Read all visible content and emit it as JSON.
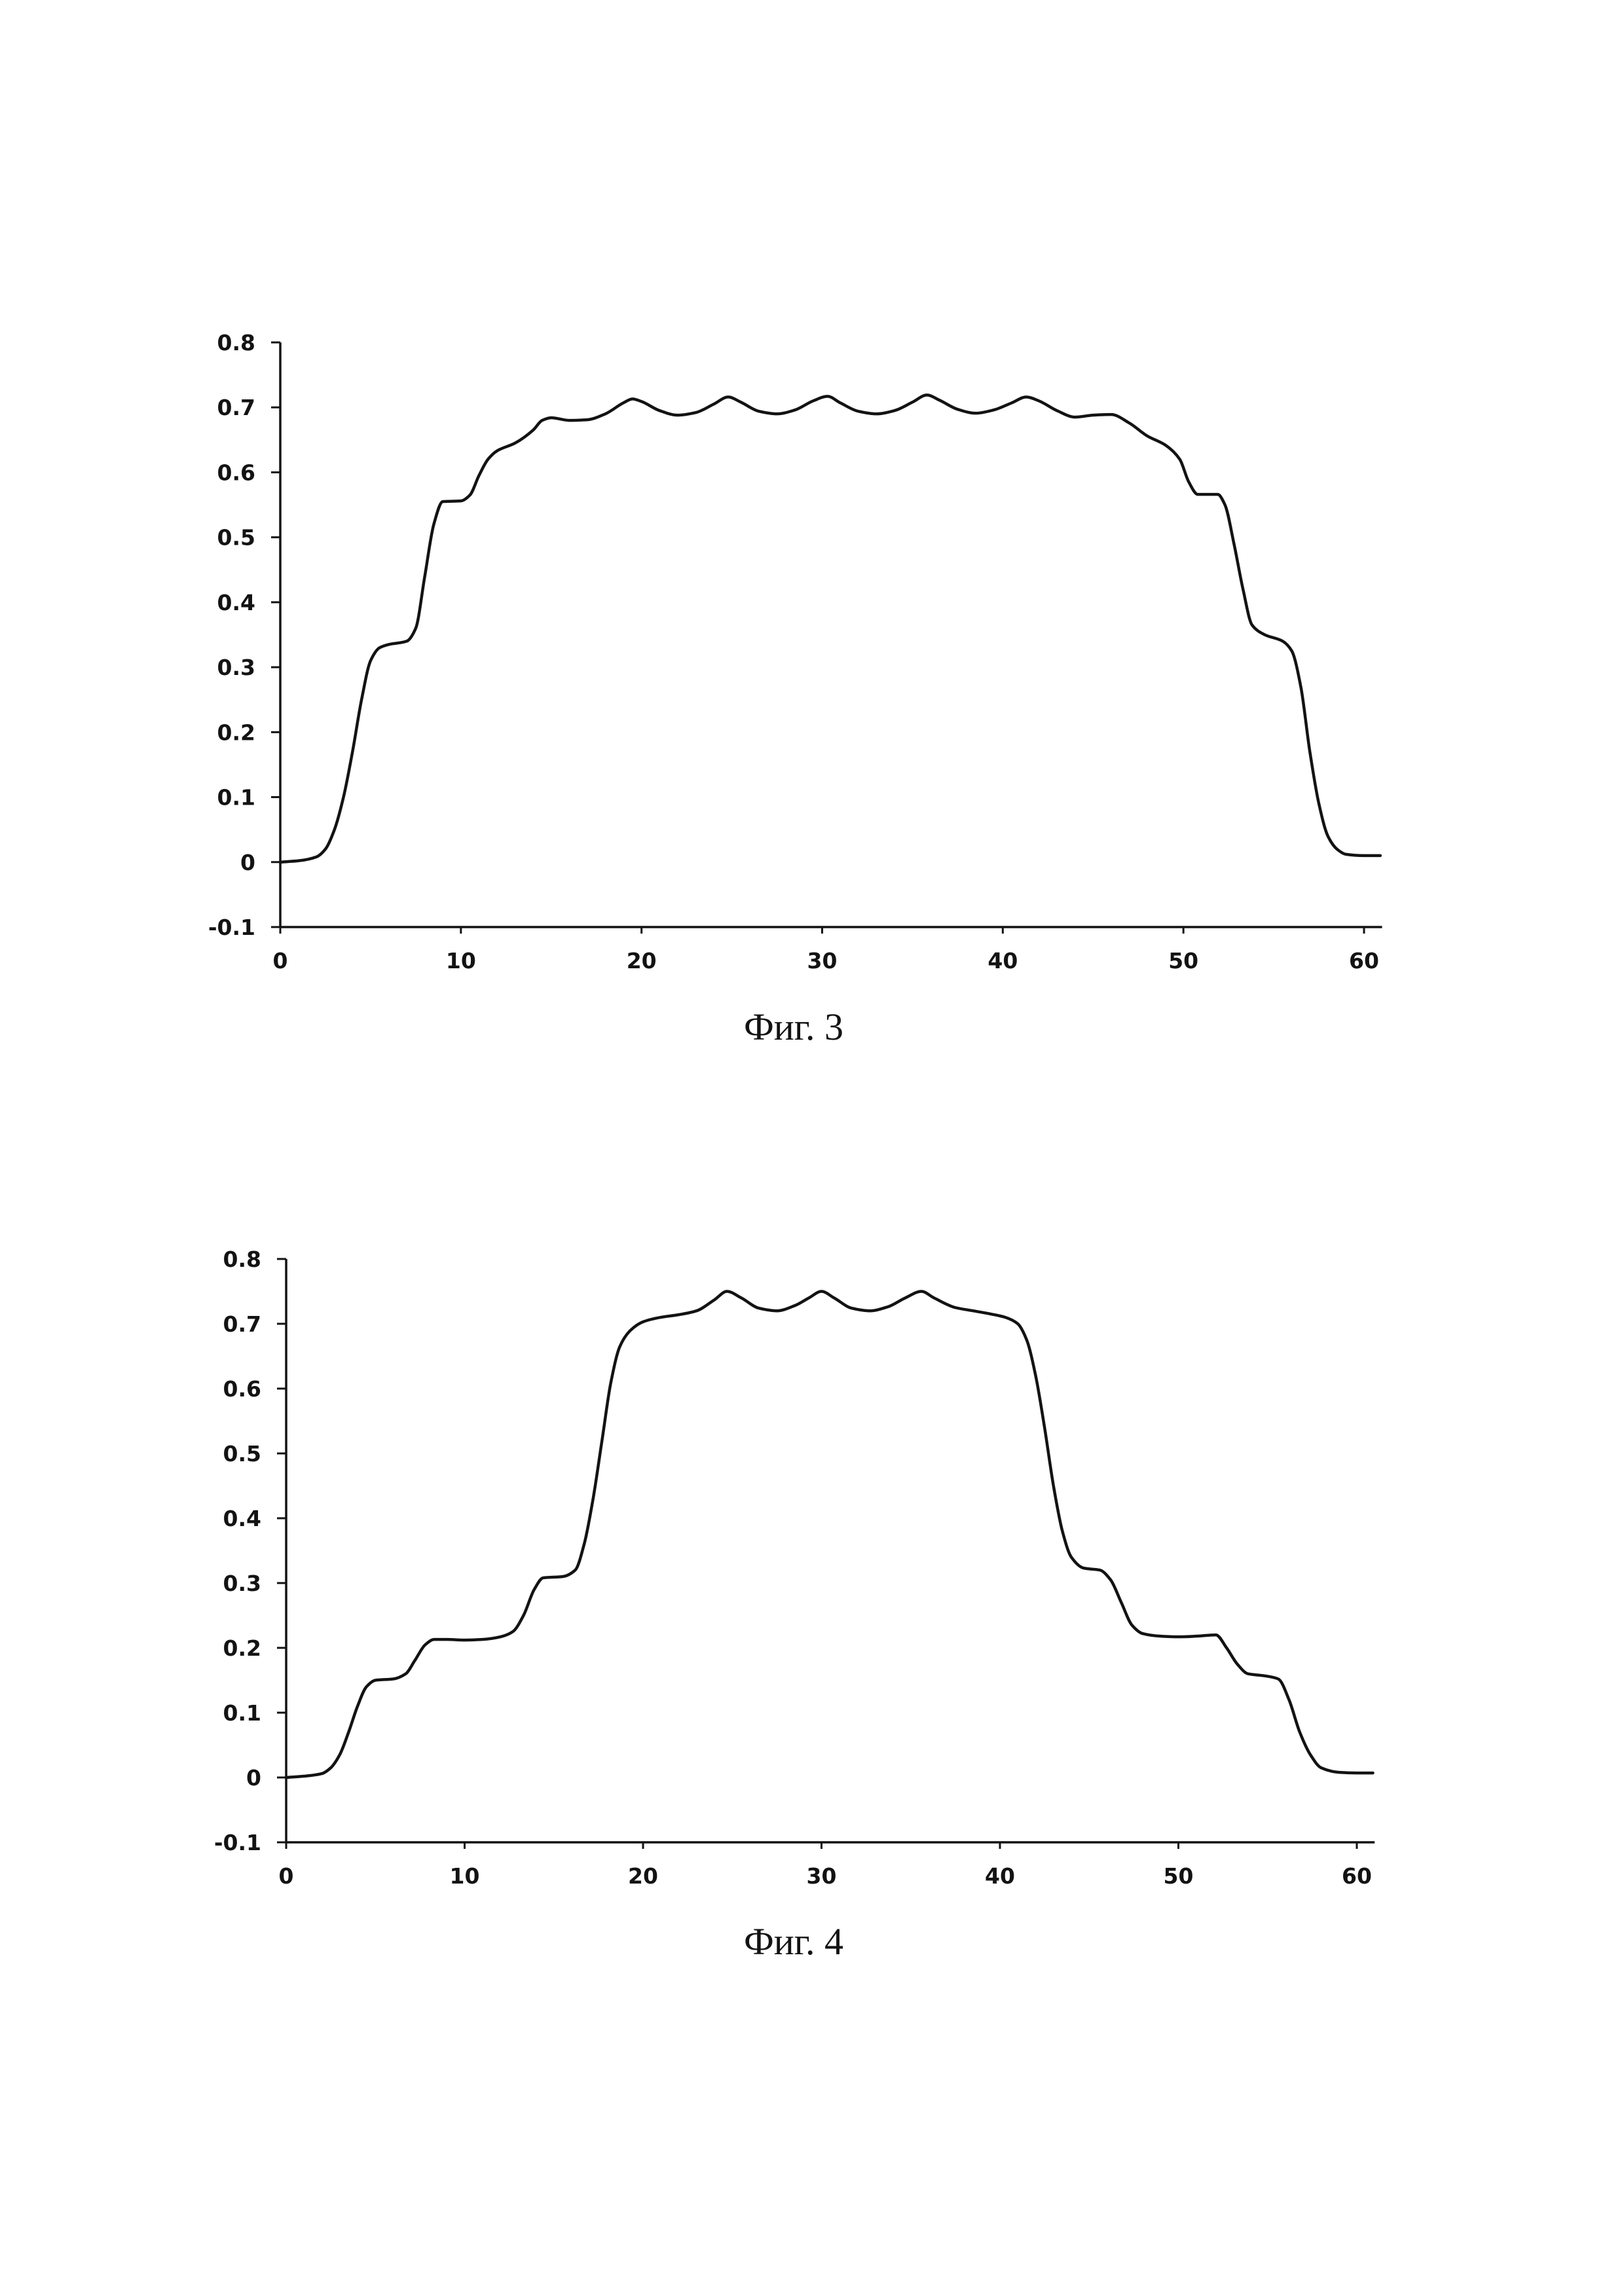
{
  "style": {
    "ink": "#131313",
    "paper": "#ffffff"
  },
  "chart_data": [
    {
      "type": "line",
      "caption": "Фиг. 3",
      "xticks": [
        0,
        10,
        20,
        30,
        40,
        50,
        60
      ],
      "xtick_labels": [
        "0",
        "10",
        "20",
        "30",
        "40",
        "50",
        "60"
      ],
      "yticks": [
        -0.1,
        0,
        0.1,
        0.2,
        0.3,
        0.4,
        0.5,
        0.6,
        0.7,
        0.8
      ],
      "ytick_labels": [
        "-0.1",
        "0",
        "0.1",
        "0.2",
        "0.3",
        "0.4",
        "0.5",
        "0.6",
        "0.7",
        "0.8"
      ],
      "xlim": [
        0,
        61
      ],
      "ylim": [
        -0.1,
        0.8
      ],
      "grid": false,
      "series": [
        {
          "x": [
            0,
            1,
            2,
            2.5,
            3,
            3.5,
            4,
            4.5,
            5,
            5.5,
            6,
            7,
            7.5,
            8,
            8.5,
            9,
            10,
            10.5,
            11,
            11.5,
            12,
            13,
            14,
            14.5,
            15,
            16,
            17,
            18,
            19,
            19.5,
            20,
            21,
            22,
            23,
            24,
            24.8,
            25.5,
            26.5,
            27.5,
            28.5,
            29.5,
            30.3,
            31,
            32,
            33,
            34,
            35,
            35.8,
            36.5,
            37.5,
            38.5,
            39.5,
            40.5,
            41.3,
            42,
            43,
            44,
            45,
            46,
            47,
            48,
            49,
            49.8,
            50.3,
            50.8,
            51.9,
            52.3,
            52.8,
            53.3,
            53.8,
            54.5,
            55.5,
            56,
            56.5,
            57,
            57.5,
            58,
            58.5,
            59,
            60,
            60.9
          ],
          "y": [
            0,
            0.002,
            0.008,
            0.02,
            0.05,
            0.1,
            0.17,
            0.25,
            0.31,
            0.33,
            0.335,
            0.34,
            0.36,
            0.44,
            0.52,
            0.555,
            0.556,
            0.565,
            0.595,
            0.62,
            0.633,
            0.645,
            0.665,
            0.68,
            0.684,
            0.68,
            0.681,
            0.69,
            0.707,
            0.713,
            0.709,
            0.695,
            0.688,
            0.692,
            0.705,
            0.716,
            0.708,
            0.694,
            0.69,
            0.696,
            0.71,
            0.717,
            0.707,
            0.694,
            0.69,
            0.695,
            0.708,
            0.719,
            0.711,
            0.697,
            0.691,
            0.696,
            0.707,
            0.716,
            0.71,
            0.695,
            0.685,
            0.688,
            0.689,
            0.676,
            0.656,
            0.642,
            0.62,
            0.585,
            0.566,
            0.566,
            0.55,
            0.49,
            0.42,
            0.365,
            0.35,
            0.34,
            0.325,
            0.27,
            0.17,
            0.09,
            0.04,
            0.02,
            0.012,
            0.01,
            0.01
          ]
        }
      ]
    },
    {
      "type": "line",
      "caption": "Фиг. 4",
      "xticks": [
        0,
        10,
        20,
        30,
        40,
        50,
        60
      ],
      "xtick_labels": [
        "0",
        "10",
        "20",
        "30",
        "40",
        "50",
        "60"
      ],
      "yticks": [
        -0.1,
        0,
        0.1,
        0.2,
        0.3,
        0.4,
        0.5,
        0.6,
        0.7,
        0.8
      ],
      "ytick_labels": [
        "-0.1",
        "0",
        "0.1",
        "0.2",
        "0.3",
        "0.4",
        "0.5",
        "0.6",
        "0.7",
        "0.8"
      ],
      "xlim": [
        0,
        61
      ],
      "ylim": [
        -0.1,
        0.8
      ],
      "grid": false,
      "series": [
        {
          "x": [
            0,
            1,
            2,
            2.5,
            3,
            3.5,
            4,
            4.5,
            5,
            6,
            6.7,
            7.2,
            7.8,
            8.3,
            9,
            10,
            11,
            12,
            12.7,
            13.3,
            13.9,
            14.4,
            15.5,
            16.2,
            16.7,
            17.2,
            17.7,
            18.2,
            18.7,
            19.3,
            20,
            21,
            22,
            23,
            24,
            24.7,
            25.5,
            26.5,
            27.5,
            28.5,
            29.3,
            30,
            30.7,
            31.7,
            32.7,
            33.7,
            34.7,
            35.6,
            36.3,
            37.5,
            38.5,
            39.5,
            40.3,
            41,
            41.5,
            42,
            42.5,
            43,
            43.5,
            44,
            44.7,
            45.6,
            46.2,
            46.8,
            47.4,
            48,
            49,
            50,
            51,
            52.1,
            52.7,
            53.3,
            53.9,
            54.8,
            55.6,
            56.2,
            56.8,
            57.4,
            58,
            59,
            60,
            60.9
          ],
          "y": [
            0,
            0.002,
            0.006,
            0.015,
            0.035,
            0.07,
            0.11,
            0.14,
            0.15,
            0.152,
            0.16,
            0.18,
            0.205,
            0.213,
            0.213,
            0.212,
            0.213,
            0.217,
            0.225,
            0.25,
            0.29,
            0.308,
            0.31,
            0.32,
            0.36,
            0.43,
            0.52,
            0.61,
            0.665,
            0.69,
            0.703,
            0.71,
            0.714,
            0.72,
            0.737,
            0.75,
            0.74,
            0.724,
            0.72,
            0.728,
            0.74,
            0.75,
            0.74,
            0.724,
            0.72,
            0.726,
            0.74,
            0.75,
            0.74,
            0.725,
            0.72,
            0.715,
            0.71,
            0.7,
            0.675,
            0.62,
            0.54,
            0.45,
            0.38,
            0.34,
            0.323,
            0.32,
            0.305,
            0.27,
            0.235,
            0.222,
            0.218,
            0.217,
            0.218,
            0.22,
            0.2,
            0.175,
            0.16,
            0.157,
            0.152,
            0.12,
            0.07,
            0.035,
            0.015,
            0.008,
            0.007,
            0.007
          ]
        }
      ]
    }
  ]
}
